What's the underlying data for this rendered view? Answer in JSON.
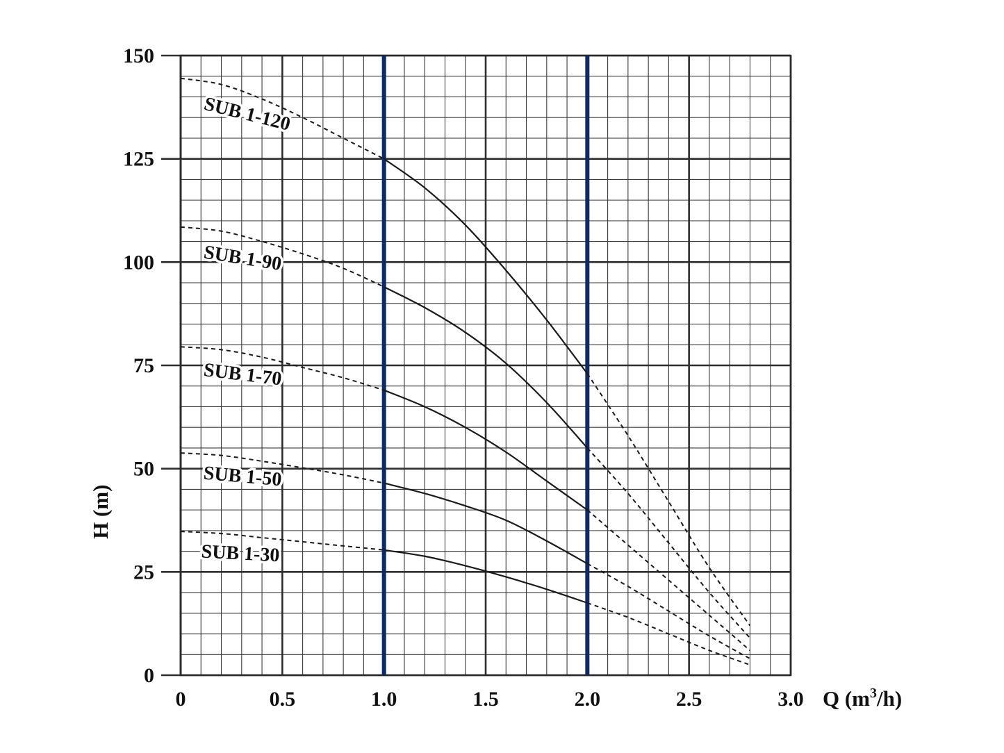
{
  "chart_data": {
    "type": "line",
    "title": "",
    "xlabel": "Q (m",
    "xlabel_sup": "3",
    "xlabel_tail": "/h)",
    "ylabel": "H (m)",
    "xlim": [
      0,
      3.0
    ],
    "ylim": [
      0,
      150
    ],
    "x_ticks": [
      {
        "value": 0,
        "label": "0"
      },
      {
        "value": 0.5,
        "label": "0.5"
      },
      {
        "value": 1.0,
        "label": "1.0"
      },
      {
        "value": 1.5,
        "label": "1.5"
      },
      {
        "value": 2.0,
        "label": "2.0"
      },
      {
        "value": 2.5,
        "label": "2.5"
      },
      {
        "value": 3.0,
        "label": "3.0"
      }
    ],
    "y_ticks": [
      {
        "value": 0,
        "label": "0"
      },
      {
        "value": 25,
        "label": "25"
      },
      {
        "value": 50,
        "label": "50"
      },
      {
        "value": 75,
        "label": "75"
      },
      {
        "value": 100,
        "label": "100"
      },
      {
        "value": 125,
        "label": "125"
      },
      {
        "value": 150,
        "label": "150"
      }
    ],
    "grid": true,
    "grid_minor_step_x": 0.1,
    "grid_minor_step_y": 5,
    "highlight_x": [
      1.0,
      2.0
    ],
    "recommended_range": [
      1.0,
      2.0
    ],
    "colors": {
      "grid": "#3a3a3a",
      "curve": "#1a1a1a",
      "highlight": "#0d2a66"
    },
    "series": [
      {
        "name": "SUB 1-120",
        "label_at": [
          0.11,
          137
        ],
        "label_rot": 14,
        "x": [
          0,
          0.2,
          0.4,
          0.6,
          0.8,
          1.0,
          1.2,
          1.4,
          1.6,
          1.8,
          2.0,
          2.2,
          2.4,
          2.6,
          2.8
        ],
        "y": [
          144.5,
          143,
          139.5,
          135,
          130,
          125,
          118,
          109,
          98,
          86,
          73,
          58,
          42,
          26,
          12
        ]
      },
      {
        "name": "SUB 1-90",
        "label_at": [
          0.11,
          101
        ],
        "label_rot": 9,
        "x": [
          0,
          0.2,
          0.4,
          0.6,
          0.8,
          1.0,
          1.2,
          1.4,
          1.6,
          1.8,
          2.0,
          2.2,
          2.4,
          2.6,
          2.8
        ],
        "y": [
          108.5,
          107.5,
          105,
          102,
          98.5,
          94,
          89,
          83,
          75.5,
          66,
          55,
          44,
          32,
          20,
          9
        ]
      },
      {
        "name": "SUB 1-70",
        "label_at": [
          0.11,
          72.5
        ],
        "label_rot": 7,
        "x": [
          0,
          0.2,
          0.4,
          0.6,
          0.8,
          1.0,
          1.2,
          1.4,
          1.6,
          1.8,
          2.0,
          2.2,
          2.4,
          2.6,
          2.8
        ],
        "y": [
          79.5,
          78.8,
          77,
          74.5,
          72,
          69,
          65,
          60,
          54,
          47,
          40,
          31.5,
          23,
          14.5,
          6
        ]
      },
      {
        "name": "SUB 1-50",
        "label_at": [
          0.11,
          47.5
        ],
        "label_rot": 5,
        "x": [
          0,
          0.2,
          0.4,
          0.6,
          0.8,
          1.0,
          1.2,
          1.4,
          1.6,
          1.8,
          2.0,
          2.2,
          2.4,
          2.6,
          2.8
        ],
        "y": [
          53.8,
          53.2,
          51.8,
          50.2,
          48.5,
          46.5,
          44,
          41,
          37.5,
          32.5,
          27,
          21.5,
          15.5,
          9.5,
          4
        ]
      },
      {
        "name": "SUB 1-30",
        "label_at": [
          0.1,
          28.5
        ],
        "label_rot": 3,
        "x": [
          0,
          0.2,
          0.4,
          0.6,
          0.8,
          1.0,
          1.2,
          1.4,
          1.6,
          1.8,
          2.0,
          2.2,
          2.4,
          2.6,
          2.8
        ],
        "y": [
          34.8,
          34.3,
          33.3,
          32.3,
          31.3,
          30.3,
          28.8,
          26.5,
          23.8,
          20.8,
          17.5,
          14,
          10,
          6,
          2.5
        ]
      }
    ]
  }
}
